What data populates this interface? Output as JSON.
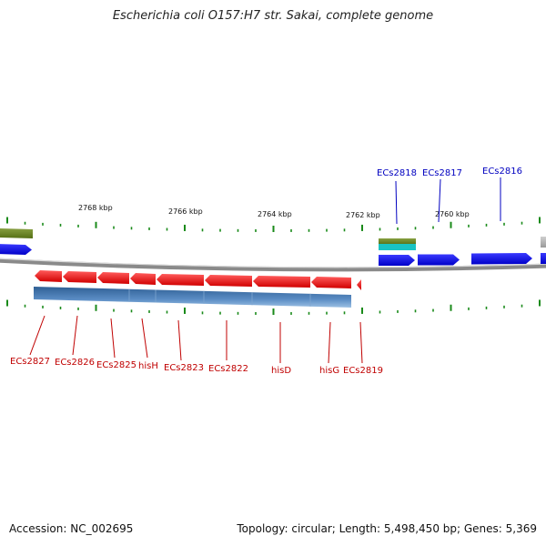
{
  "title": "Escherichia coli O157:H7 str. Sakai, complete genome",
  "footer": {
    "accession": "Accession: NC_002695",
    "topology": "Topology: circular; Length: 5,498,450 bp; Genes: 5,369"
  },
  "scale_labels": [
    "2768 kbp",
    "2766 kbp",
    "2764 kbp",
    "2762 kbp",
    "2760 kbp"
  ],
  "genes_reverse": [
    "ECs2827",
    "ECs2826",
    "ECs2825",
    "hisH",
    "ECs2823",
    "ECs2822",
    "hisD",
    "hisG",
    "ECs2819"
  ],
  "genes_forward": [
    "ECs2818",
    "ECs2817",
    "ECs2816"
  ],
  "colors": {
    "cds_reverse": "#ff0000",
    "cds_forward": "#0000ff",
    "label_reverse": "#c00000",
    "label_forward": "#0000c0",
    "backbone": "#888888",
    "tick": "#1a8a1a",
    "operon_bar": "#4a7fb5",
    "feature_olive": "#6b8c1a",
    "feature_cyan": "#19c3c3"
  }
}
